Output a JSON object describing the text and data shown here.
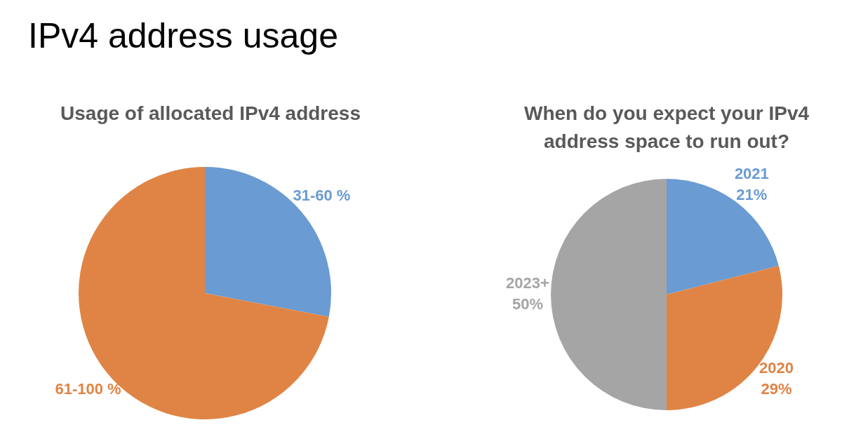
{
  "chart_data": [
    {
      "type": "pie",
      "title": "Usage of allocated IPv4 address",
      "annotations": [
        "IPv4 address usage"
      ],
      "categories": [
        "31-60 %",
        "61-100 %"
      ],
      "values": [
        28,
        72
      ],
      "colors": [
        "#6a9bd2",
        "#e08445"
      ],
      "legend": false
    },
    {
      "type": "pie",
      "title": "When do you expect your IPv4 address space to run out?",
      "categories": [
        "2021",
        "2020",
        "2023+"
      ],
      "values": [
        21,
        29,
        50
      ],
      "value_labels": [
        "21%",
        "29%",
        "50%"
      ],
      "colors": [
        "#6a9bd2",
        "#e08445",
        "#a5a5a5"
      ],
      "legend": false
    }
  ]
}
